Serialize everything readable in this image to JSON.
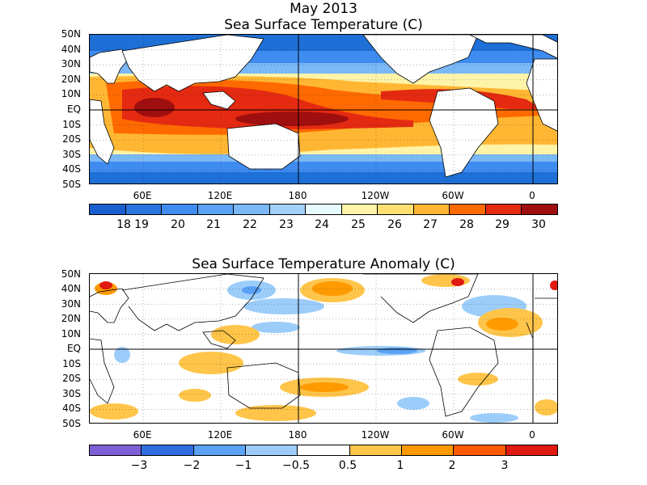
{
  "title_top": "May 2013",
  "panels": [
    {
      "title": "Sea Surface Temperature (C)",
      "lat_labels": [
        "50N",
        "40N",
        "30N",
        "20N",
        "10N",
        "EQ",
        "10S",
        "20S",
        "30S",
        "40S",
        "50S"
      ],
      "lon_labels": [
        "60E",
        "120E",
        "180",
        "120W",
        "60W",
        "0"
      ],
      "colorbar": {
        "colors": [
          "#1a5fcf",
          "#2b74e0",
          "#3f8cf0",
          "#5aa2f5",
          "#7bb8f8",
          "#a2d1fb",
          "#e6fbff",
          "#fff3a8",
          "#ffe070",
          "#ffb733",
          "#ff6a00",
          "#e52a12",
          "#a00f0f"
        ],
        "labels": [
          "18",
          "19",
          "20",
          "21",
          "22",
          "23",
          "24",
          "25",
          "26",
          "27",
          "28",
          "29",
          "30"
        ]
      }
    },
    {
      "title": "Sea Surface Temperature Anomaly (C)",
      "lat_labels": [
        "50N",
        "40N",
        "30N",
        "20N",
        "10N",
        "EQ",
        "10S",
        "20S",
        "30S",
        "40S",
        "50S"
      ],
      "lon_labels": [
        "60E",
        "120E",
        "180",
        "120W",
        "60W",
        "0"
      ],
      "colorbar": {
        "colors": [
          "#7f5fd6",
          "#2f6ee0",
          "#5aa2f5",
          "#9ccdfa",
          "#ffffff",
          "#ffc54a",
          "#ff9a00",
          "#ff5a00",
          "#e01a10"
        ],
        "labels": [
          "−3",
          "−2",
          "−1",
          "−0.5",
          "0.5",
          "1",
          "2",
          "3"
        ]
      }
    }
  ]
}
